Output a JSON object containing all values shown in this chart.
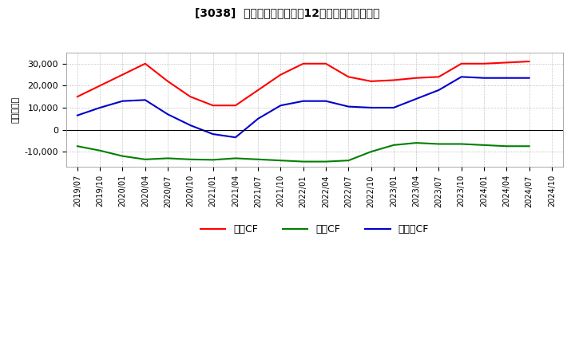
{
  "title": "[3038]  キャッシュフローの12か月移動合計の推移",
  "ylabel": "（百万円）",
  "background_color": "#ffffff",
  "plot_bg_color": "#ffffff",
  "grid_color": "#aaaaaa",
  "x_labels": [
    "2019/07",
    "2019/10",
    "2020/01",
    "2020/04",
    "2020/07",
    "2020/10",
    "2021/01",
    "2021/04",
    "2021/07",
    "2021/10",
    "2022/01",
    "2022/04",
    "2022/07",
    "2022/10",
    "2023/01",
    "2023/04",
    "2023/07",
    "2023/10",
    "2024/01",
    "2024/04",
    "2024/07",
    "2024/10"
  ],
  "operating_cf": [
    15000,
    20000,
    25000,
    30000,
    22000,
    15000,
    11000,
    11000,
    18000,
    25000,
    30000,
    30000,
    24000,
    22000,
    22500,
    23500,
    24000,
    30000,
    30000,
    30500,
    31000,
    null
  ],
  "investing_cf": [
    -7500,
    -9500,
    -12000,
    -13500,
    -13000,
    -13500,
    -13700,
    -13000,
    -13500,
    -14000,
    -14500,
    -14500,
    -14000,
    -10000,
    -7000,
    -6000,
    -6500,
    -6500,
    -7000,
    -7500,
    -7500,
    null
  ],
  "free_cf": [
    6500,
    10000,
    13000,
    13500,
    7000,
    2000,
    -2000,
    -3500,
    5000,
    11000,
    13000,
    13000,
    10500,
    10000,
    10000,
    14000,
    18000,
    24000,
    23500,
    23500,
    23500,
    null
  ],
  "operating_color": "#ff0000",
  "investing_color": "#008000",
  "free_color": "#0000cc",
  "legend_labels": [
    "営業CF",
    "投資CF",
    "フリーCF"
  ],
  "ylim": [
    -17000,
    35000
  ],
  "yticks": [
    -10000,
    0,
    10000,
    20000,
    30000
  ]
}
